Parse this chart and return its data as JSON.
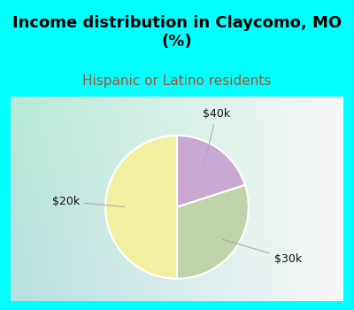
{
  "title": "Income distribution in Claycomo, MO\n(%)",
  "subtitle": "Hispanic or Latino residents",
  "slices": [
    {
      "label": "$40k",
      "value": 20,
      "color": "#c9a8d4"
    },
    {
      "label": "$30k",
      "value": 30,
      "color": "#c0d4aa"
    },
    {
      "label": "$20k",
      "value": 50,
      "color": "#f0f0a0"
    }
  ],
  "bg_color": "#00ffff",
  "title_fontsize": 13,
  "title_fontweight": "bold",
  "subtitle_fontsize": 11,
  "subtitle_color": "#b05030",
  "label_color": "#111111",
  "label_fontsize": 9,
  "line_color": "#aaaaaa",
  "wedge_edge_color": "white",
  "wedge_edge_width": 1.5
}
